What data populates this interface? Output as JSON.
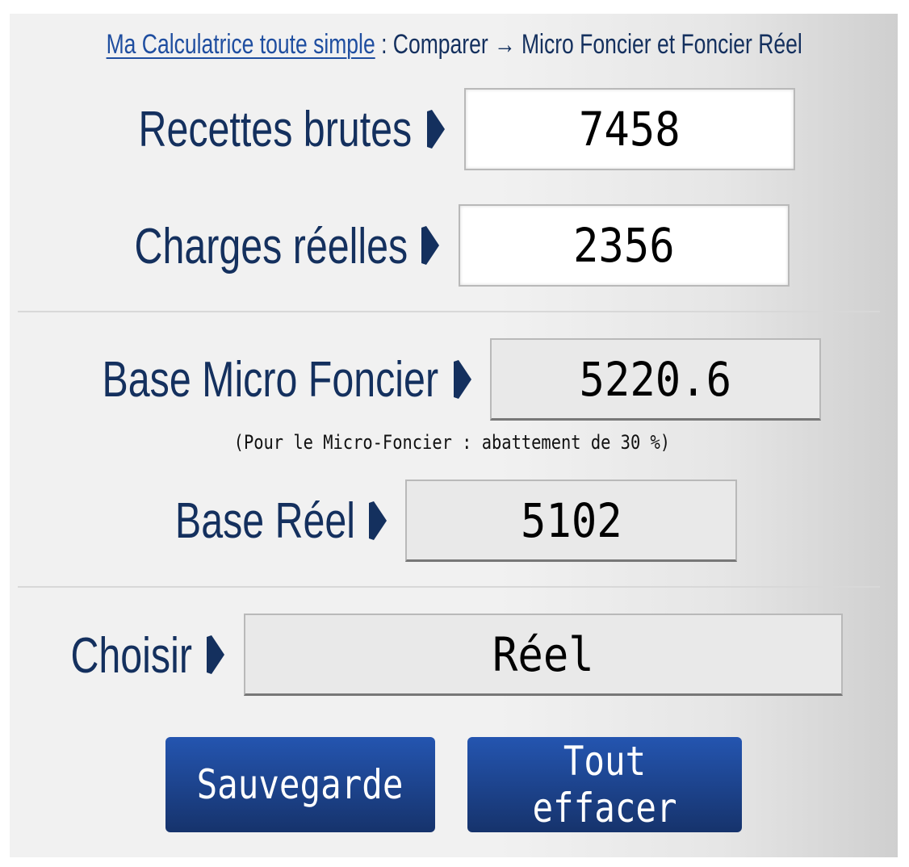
{
  "header": {
    "link": "Ma Calculatrice toute simple",
    "rest": " : Comparer → Micro Foncier et Foncier Réel"
  },
  "fields": {
    "recettes": {
      "label": "Recettes brutes",
      "value": "7458"
    },
    "charges": {
      "label": "Charges réelles",
      "value": "2356"
    },
    "micro": {
      "label": "Base Micro Foncier",
      "value": "5220.6"
    },
    "note": "(Pour le Micro-Foncier : abattement de 30 %)",
    "reel": {
      "label": "Base Réel",
      "value": "5102"
    },
    "choisir": {
      "label": "Choisir",
      "value": "Réel"
    }
  },
  "buttons": {
    "save": "Sauvegarde",
    "clear": "Tout effacer"
  },
  "colors": {
    "label": "#14305e",
    "link": "#1f4ea0",
    "button_top": "#2455b0",
    "button_bottom": "#16336c"
  }
}
